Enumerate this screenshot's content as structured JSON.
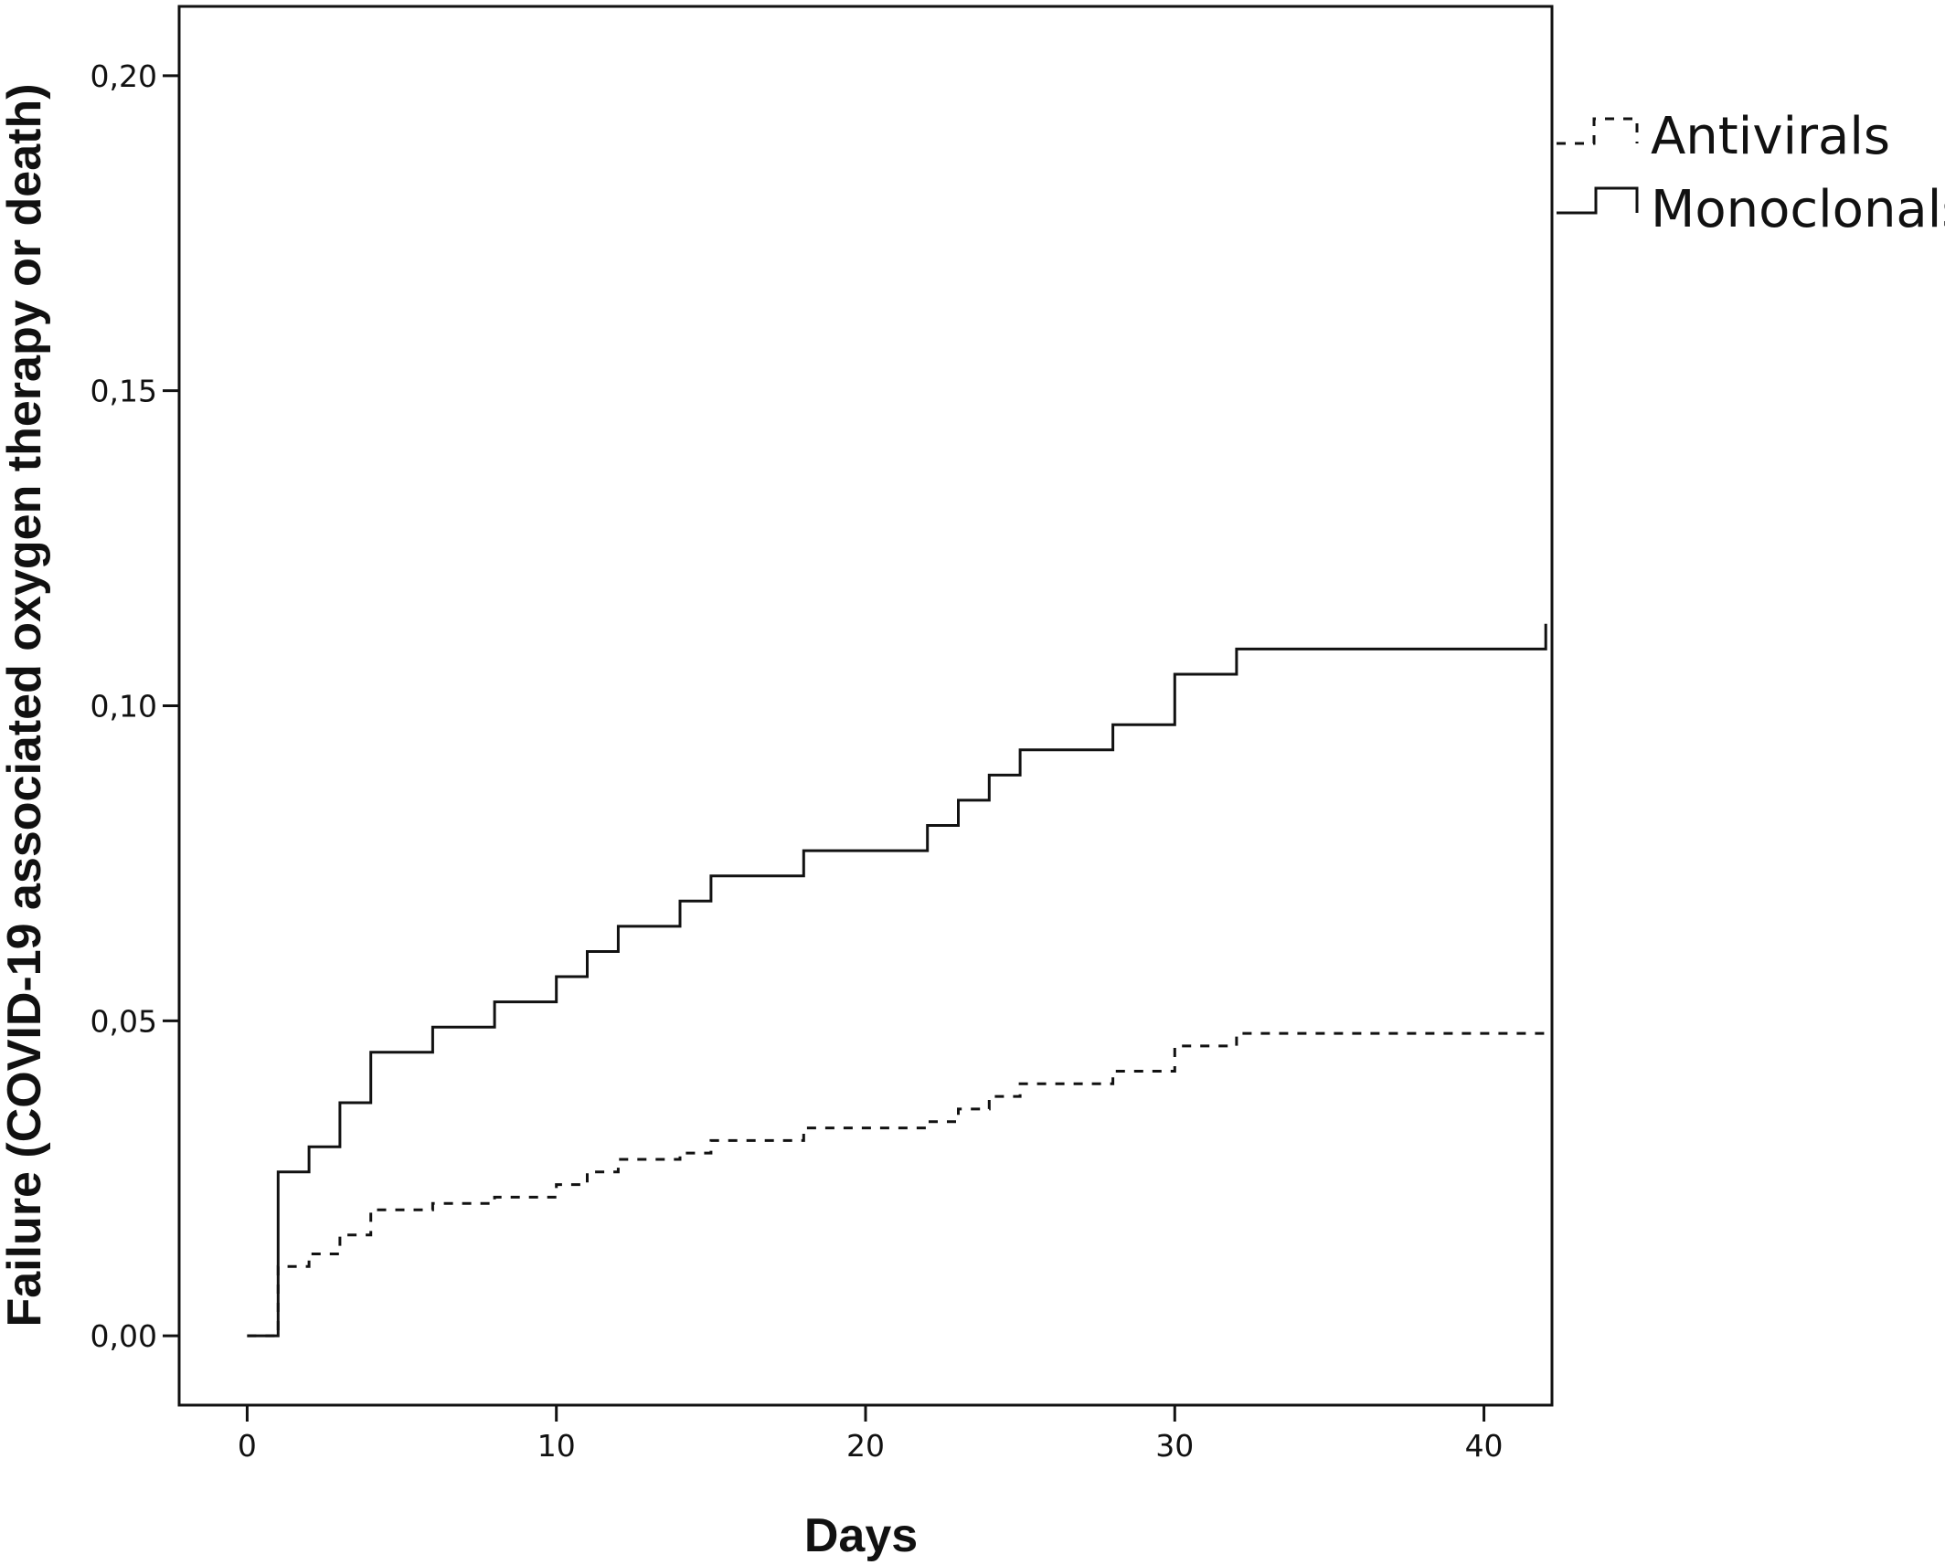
{
  "chart_data": {
    "type": "line",
    "title": "",
    "xlabel": "Days",
    "ylabel": "Failure (COVID-19 associated oxygen therapy or death)",
    "xlim": [
      -2.2,
      42.2
    ],
    "ylim": [
      -0.011,
      0.211
    ],
    "x_ticks": [
      0,
      10,
      20,
      30,
      40
    ],
    "x_tick_labels": [
      "0",
      "10",
      "20",
      "30",
      "40"
    ],
    "y_ticks": [
      0.0,
      0.05,
      0.1,
      0.15,
      0.2
    ],
    "y_tick_labels": [
      "0,00",
      "0,05",
      "0,10",
      "0,15",
      "0,20"
    ],
    "grid": false,
    "legend_position": "right",
    "series": [
      {
        "name": "Antivirals",
        "style": "dashed",
        "color": "#111111",
        "step": true,
        "points": [
          [
            0,
            0.0
          ],
          [
            1,
            0.0
          ],
          [
            1,
            0.011
          ],
          [
            2,
            0.011
          ],
          [
            2,
            0.013
          ],
          [
            3,
            0.013
          ],
          [
            3,
            0.016
          ],
          [
            4,
            0.016
          ],
          [
            4,
            0.02
          ],
          [
            6,
            0.02
          ],
          [
            6,
            0.021
          ],
          [
            8,
            0.021
          ],
          [
            8,
            0.022
          ],
          [
            10,
            0.022
          ],
          [
            10,
            0.024
          ],
          [
            11,
            0.024
          ],
          [
            11,
            0.026
          ],
          [
            12,
            0.026
          ],
          [
            12,
            0.028
          ],
          [
            14,
            0.028
          ],
          [
            14,
            0.029
          ],
          [
            15,
            0.029
          ],
          [
            15,
            0.031
          ],
          [
            18,
            0.031
          ],
          [
            18,
            0.033
          ],
          [
            22,
            0.033
          ],
          [
            22,
            0.034
          ],
          [
            23,
            0.034
          ],
          [
            23,
            0.036
          ],
          [
            24,
            0.036
          ],
          [
            24,
            0.038
          ],
          [
            25,
            0.038
          ],
          [
            25,
            0.04
          ],
          [
            28,
            0.04
          ],
          [
            28,
            0.042
          ],
          [
            30,
            0.042
          ],
          [
            30,
            0.046
          ],
          [
            32,
            0.046
          ],
          [
            32,
            0.048
          ],
          [
            42,
            0.048
          ],
          [
            42,
            0.049
          ]
        ]
      },
      {
        "name": "Monoclonals",
        "style": "solid",
        "color": "#111111",
        "step": true,
        "points": [
          [
            0,
            0.0
          ],
          [
            1,
            0.0
          ],
          [
            1,
            0.026
          ],
          [
            2,
            0.026
          ],
          [
            2,
            0.03
          ],
          [
            3,
            0.03
          ],
          [
            3,
            0.037
          ],
          [
            4,
            0.037
          ],
          [
            4,
            0.045
          ],
          [
            6,
            0.045
          ],
          [
            6,
            0.049
          ],
          [
            8,
            0.049
          ],
          [
            8,
            0.053
          ],
          [
            10,
            0.053
          ],
          [
            10,
            0.057
          ],
          [
            11,
            0.057
          ],
          [
            11,
            0.061
          ],
          [
            12,
            0.061
          ],
          [
            12,
            0.065
          ],
          [
            14,
            0.065
          ],
          [
            14,
            0.069
          ],
          [
            15,
            0.069
          ],
          [
            15,
            0.073
          ],
          [
            18,
            0.073
          ],
          [
            18,
            0.077
          ],
          [
            22,
            0.077
          ],
          [
            22,
            0.081
          ],
          [
            23,
            0.081
          ],
          [
            23,
            0.085
          ],
          [
            24,
            0.085
          ],
          [
            24,
            0.089
          ],
          [
            25,
            0.089
          ],
          [
            25,
            0.093
          ],
          [
            28,
            0.093
          ],
          [
            28,
            0.097
          ],
          [
            30,
            0.097
          ],
          [
            30,
            0.105
          ],
          [
            32,
            0.105
          ],
          [
            32,
            0.109
          ],
          [
            42,
            0.109
          ],
          [
            42,
            0.113
          ]
        ]
      }
    ]
  }
}
